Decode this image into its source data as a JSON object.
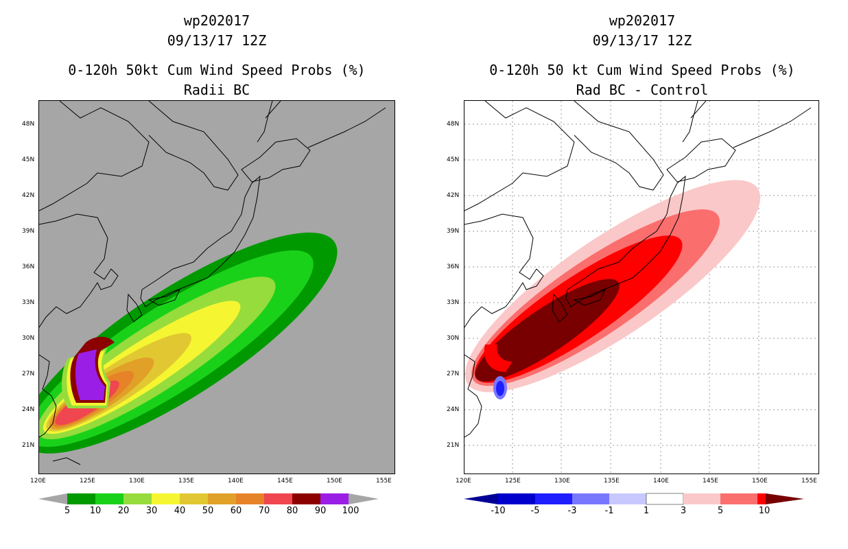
{
  "left": {
    "title1": "wp202017",
    "title2": "09/13/17 12Z",
    "title3": "0-120h 50kt Cum Wind Speed Probs (%)",
    "title4": "Radii BC",
    "background": "#a6a6a6",
    "lat_ticks": [
      "48N",
      "45N",
      "42N",
      "39N",
      "36N",
      "33N",
      "30N",
      "27N",
      "24N",
      "21N"
    ],
    "lon_ticks": [
      "120E",
      "125E",
      "130E",
      "135E",
      "140E",
      "145E",
      "150E",
      "155E"
    ],
    "colorbar": {
      "colors": [
        "#009900",
        "#1ad11a",
        "#96dc3c",
        "#f5f532",
        "#e1c832",
        "#e1a028",
        "#e68228",
        "#f04650",
        "#8c0000",
        "#9a1ee6"
      ],
      "labels": [
        "5",
        "10",
        "20",
        "30",
        "40",
        "50",
        "60",
        "70",
        "80",
        "90",
        "100"
      ],
      "end_color": "#a6a6a6"
    }
  },
  "right": {
    "title1": "wp202017",
    "title2": "09/13/17 12Z",
    "title3": "0-120h 50 kt Cum Wind Speed Probs (%)",
    "title4": "Rad BC - Control",
    "background": "#ffffff",
    "lat_ticks": [
      "48N",
      "45N",
      "42N",
      "39N",
      "36N",
      "33N",
      "30N",
      "27N",
      "24N",
      "21N"
    ],
    "lon_ticks": [
      "120E",
      "125E",
      "130E",
      "135E",
      "140E",
      "145E",
      "150E",
      "155E"
    ],
    "colorbar": {
      "colors": [
        "#0000cd",
        "#1e1eff",
        "#7878ff",
        "#c8c8ff",
        "#ffffff",
        "#fac8c8",
        "#fa6e6e",
        "#ff0000"
      ],
      "labels": [
        "-10",
        "-5",
        "-3",
        "-1",
        "1",
        "3",
        "5",
        "10"
      ],
      "low_color": "#000096",
      "high_color": "#780000"
    }
  },
  "map_extent": {
    "lon": [
      120,
      156
    ],
    "lat": [
      19,
      50
    ]
  }
}
